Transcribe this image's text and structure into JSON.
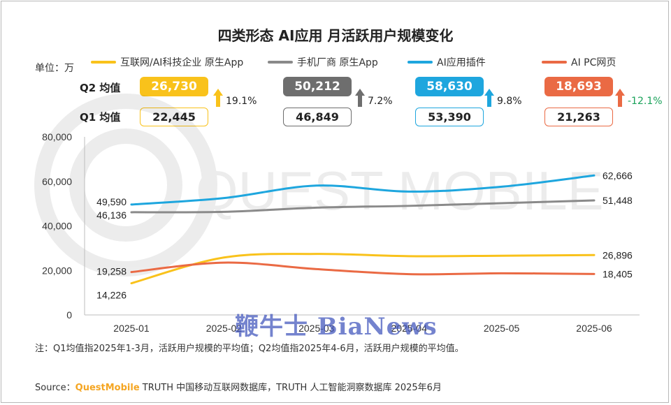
{
  "title": "四类形态 AI应用 月活跃用户规模变化",
  "unit_label": "单位：万",
  "row_labels": {
    "q2": "Q2 均值",
    "q1": "Q1 均值"
  },
  "colors": {
    "internet": "#f9c21b",
    "phone": "#8a8a8a",
    "plugin": "#1ea6de",
    "pcweb": "#ea6a44",
    "up_green": "#1aa25a"
  },
  "summary": [
    {
      "name": "互联网/AI科技企业 原生App",
      "q2": "26,730",
      "q1": "22,445",
      "change": "19.1%",
      "color": "#f9c21b",
      "direction": "up"
    },
    {
      "name": "手机厂商 原生App",
      "q2": "50,212",
      "q1": "46,849",
      "change": "7.2%",
      "color": "#6e6e6e",
      "direction": "up"
    },
    {
      "name": "AI应用插件",
      "q2": "58,630",
      "q1": "53,390",
      "change": "9.8%",
      "color": "#1ea6de",
      "direction": "up"
    },
    {
      "name": "AI PC网页",
      "q2": "18,693",
      "q1": "21,263",
      "change": "-12.1%",
      "color": "#ea6a44",
      "direction": "down"
    }
  ],
  "chart_data": {
    "type": "line",
    "categories": [
      "2025-01",
      "2025-02",
      "2025-03",
      "2025-04",
      "2025-05",
      "2025-06"
    ],
    "ylim": [
      0,
      80000
    ],
    "yticks": [
      "0",
      "20,000",
      "40,000",
      "60,000",
      "80,000"
    ],
    "ytick_values": [
      0,
      20000,
      40000,
      60000,
      80000
    ],
    "series": [
      {
        "name": "互联网/AI科技企业 原生App",
        "color": "#f9c21b",
        "values": [
          14226,
          25800,
          27400,
          26400,
          26600,
          26896
        ],
        "start_label": "14,226",
        "end_label": "26,896"
      },
      {
        "name": "手机厂商 原生App",
        "color": "#8a8a8a",
        "values": [
          46136,
          46300,
          48200,
          49000,
          50200,
          51448
        ],
        "start_label": "46,136",
        "end_label": "51,448"
      },
      {
        "name": "AI应用插件",
        "color": "#1ea6de",
        "values": [
          49590,
          52500,
          58100,
          55400,
          57600,
          62666
        ],
        "start_label": "49,590",
        "end_label": "62,666"
      },
      {
        "name": "AI PC网页",
        "color": "#ea6a44",
        "values": [
          19258,
          23500,
          20600,
          18300,
          18700,
          18405
        ],
        "start_label": "19,258",
        "end_label": "18,405"
      }
    ]
  },
  "note": "注：Q1均值指2025年1-3月，活跃用户规模的平均值；Q2均值指2025年4-6月，活跃用户规模的平均值。",
  "source": {
    "prefix": "Source：",
    "brand": "QuestMobile",
    "rest": " TRUTH 中国移动互联网数据库，TRUTH 人工智能洞察数据库 2025年6月"
  },
  "watermark": {
    "main": "QUEST MOBILE",
    "bianews": "鞭牛士 BiaNews"
  }
}
